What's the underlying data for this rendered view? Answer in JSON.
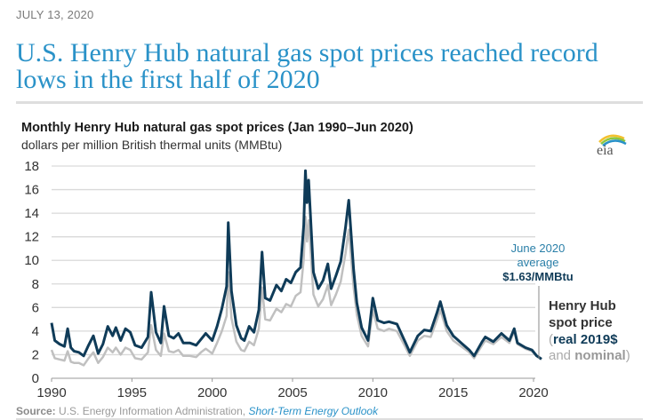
{
  "header": {
    "date": "JULY 13, 2020",
    "headline": "U.S. Henry Hub natural gas spot prices reached record lows in the first half of 2020"
  },
  "logo": {
    "text": "eia"
  },
  "source": {
    "label": "Source:",
    "text": " U.S. Energy Information Administration, ",
    "link": "Short-Term Energy Outlook"
  },
  "chart_data": {
    "type": "line",
    "title": "Monthly Henry Hub natural gas spot prices (Jan 1990–Jun 2020)",
    "subtitle": "dollars per million British thermal units (MMBtu)",
    "xlabel": "",
    "ylabel": "dollars per million British thermal units (MMBtu)",
    "xlim": [
      1990,
      2020.5
    ],
    "ylim": [
      0,
      18
    ],
    "grid": true,
    "yticks": [
      "0",
      "2",
      "4",
      "6",
      "8",
      "10",
      "12",
      "14",
      "16",
      "18"
    ],
    "xticks": [
      "1990",
      "1995",
      "2000",
      "2005",
      "2010",
      "2015",
      "2020"
    ],
    "colors": {
      "real": "#0f3b58",
      "nominal": "#c0c0c0",
      "grid": "#d9d9d9",
      "accent": "#2a92c8"
    },
    "annotation": {
      "line1": "June 2020",
      "line2": "average",
      "line3": "$1.63/MMBtu"
    },
    "legend": {
      "line1": "Henry Hub",
      "line2": "spot price",
      "open_paren": "(",
      "real": "real 2019$",
      "and": "and ",
      "nominal": "nominal",
      "close_paren": ")",
      "placement": "right"
    },
    "series": [
      {
        "name": "real 2019$",
        "x": [
          1990.0,
          1990.2,
          1990.5,
          1990.8,
          1991.0,
          1991.2,
          1991.4,
          1991.7,
          1992.0,
          1992.3,
          1992.6,
          1992.9,
          1993.2,
          1993.5,
          1993.8,
          1994.0,
          1994.3,
          1994.6,
          1994.9,
          1995.2,
          1995.6,
          1996.0,
          1996.2,
          1996.5,
          1996.8,
          1997.0,
          1997.3,
          1997.6,
          1997.9,
          1998.2,
          1998.6,
          1999.0,
          1999.3,
          1999.6,
          2000.0,
          2000.3,
          2000.6,
          2000.9,
          2001.0,
          2001.2,
          2001.5,
          2001.8,
          2002.0,
          2002.3,
          2002.6,
          2002.9,
          2003.1,
          2003.3,
          2003.6,
          2004.0,
          2004.3,
          2004.6,
          2004.9,
          2005.2,
          2005.5,
          2005.7,
          2005.8,
          2005.9,
          2006.0,
          2006.3,
          2006.6,
          2006.9,
          2007.2,
          2007.4,
          2007.7,
          2008.0,
          2008.3,
          2008.5,
          2008.8,
          2009.0,
          2009.3,
          2009.7,
          2010.0,
          2010.3,
          2010.7,
          2011.0,
          2011.5,
          2012.0,
          2012.3,
          2012.8,
          2013.2,
          2013.6,
          2014.0,
          2014.2,
          2014.6,
          2015.0,
          2015.5,
          2016.0,
          2016.3,
          2016.8,
          2017.0,
          2017.5,
          2018.0,
          2018.5,
          2018.8,
          2019.0,
          2019.5,
          2019.9,
          2020.2,
          2020.5
        ],
        "values": [
          4.7,
          3.2,
          2.9,
          2.7,
          4.2,
          2.6,
          2.3,
          2.2,
          1.9,
          2.8,
          3.6,
          2.1,
          2.9,
          4.4,
          3.6,
          4.3,
          3.2,
          4.2,
          3.9,
          2.8,
          2.6,
          3.5,
          7.3,
          3.9,
          3.0,
          6.1,
          3.6,
          3.4,
          3.8,
          3.0,
          3.0,
          2.8,
          3.3,
          3.8,
          3.2,
          4.4,
          5.9,
          7.8,
          13.2,
          7.4,
          4.5,
          3.4,
          3.2,
          4.4,
          3.9,
          5.8,
          10.7,
          6.8,
          6.6,
          7.9,
          7.4,
          8.4,
          8.1,
          9.0,
          9.4,
          13.0,
          17.6,
          14.9,
          16.8,
          9.0,
          7.6,
          8.3,
          9.7,
          7.6,
          8.7,
          9.9,
          12.8,
          15.1,
          9.2,
          6.4,
          4.3,
          3.2,
          6.8,
          4.9,
          4.7,
          4.8,
          4.6,
          3.1,
          2.2,
          3.6,
          4.1,
          4.0,
          5.6,
          6.5,
          4.5,
          3.6,
          3.0,
          2.4,
          1.9,
          3.1,
          3.5,
          3.1,
          3.8,
          3.2,
          4.2,
          3.0,
          2.6,
          2.4,
          1.9,
          1.63
        ]
      },
      {
        "name": "nominal",
        "x": [
          1990.0,
          1990.2,
          1990.5,
          1990.8,
          1991.0,
          1991.2,
          1991.4,
          1991.7,
          1992.0,
          1992.3,
          1992.6,
          1992.9,
          1993.2,
          1993.5,
          1993.8,
          1994.0,
          1994.3,
          1994.6,
          1994.9,
          1995.2,
          1995.6,
          1996.0,
          1996.2,
          1996.5,
          1996.8,
          1997.0,
          1997.3,
          1997.6,
          1997.9,
          1998.2,
          1998.6,
          1999.0,
          1999.3,
          1999.6,
          2000.0,
          2000.3,
          2000.6,
          2000.9,
          2001.0,
          2001.2,
          2001.5,
          2001.8,
          2002.0,
          2002.3,
          2002.6,
          2002.9,
          2003.1,
          2003.3,
          2003.6,
          2004.0,
          2004.3,
          2004.6,
          2004.9,
          2005.2,
          2005.5,
          2005.7,
          2005.8,
          2005.9,
          2006.0,
          2006.3,
          2006.6,
          2006.9,
          2007.2,
          2007.4,
          2007.7,
          2008.0,
          2008.3,
          2008.5,
          2008.8,
          2009.0,
          2009.3,
          2009.7,
          2010.0,
          2010.3,
          2010.7,
          2011.0,
          2011.5,
          2012.0,
          2012.3,
          2012.8,
          2013.2,
          2013.6,
          2014.0,
          2014.2,
          2014.6,
          2015.0,
          2015.5,
          2016.0,
          2016.3,
          2016.8,
          2017.0,
          2017.5,
          2018.0,
          2018.5,
          2018.8,
          2019.0,
          2019.5,
          2019.9,
          2020.2,
          2020.5
        ],
        "values": [
          2.4,
          1.7,
          1.6,
          1.5,
          2.3,
          1.4,
          1.3,
          1.3,
          1.1,
          1.7,
          2.2,
          1.3,
          1.8,
          2.6,
          2.2,
          2.6,
          2.0,
          2.6,
          2.4,
          1.7,
          1.6,
          2.2,
          4.5,
          2.4,
          1.9,
          3.8,
          2.3,
          2.2,
          2.4,
          1.9,
          1.9,
          1.8,
          2.2,
          2.5,
          2.1,
          3.0,
          4.0,
          5.3,
          9.0,
          5.1,
          3.1,
          2.4,
          2.3,
          3.1,
          2.8,
          4.2,
          7.7,
          5.0,
          4.9,
          5.9,
          5.6,
          6.3,
          6.1,
          7.0,
          7.3,
          10.1,
          13.7,
          11.6,
          13.4,
          7.1,
          6.1,
          6.7,
          7.9,
          6.2,
          7.1,
          8.2,
          10.6,
          12.6,
          7.7,
          5.4,
          3.6,
          2.7,
          5.8,
          4.2,
          4.0,
          4.2,
          4.0,
          2.7,
          1.9,
          3.2,
          3.6,
          3.5,
          5.0,
          5.8,
          4.0,
          3.2,
          2.7,
          2.2,
          1.7,
          2.8,
          3.2,
          2.9,
          3.5,
          3.0,
          4.0,
          2.9,
          2.5,
          2.3,
          1.9,
          1.63
        ]
      }
    ]
  }
}
